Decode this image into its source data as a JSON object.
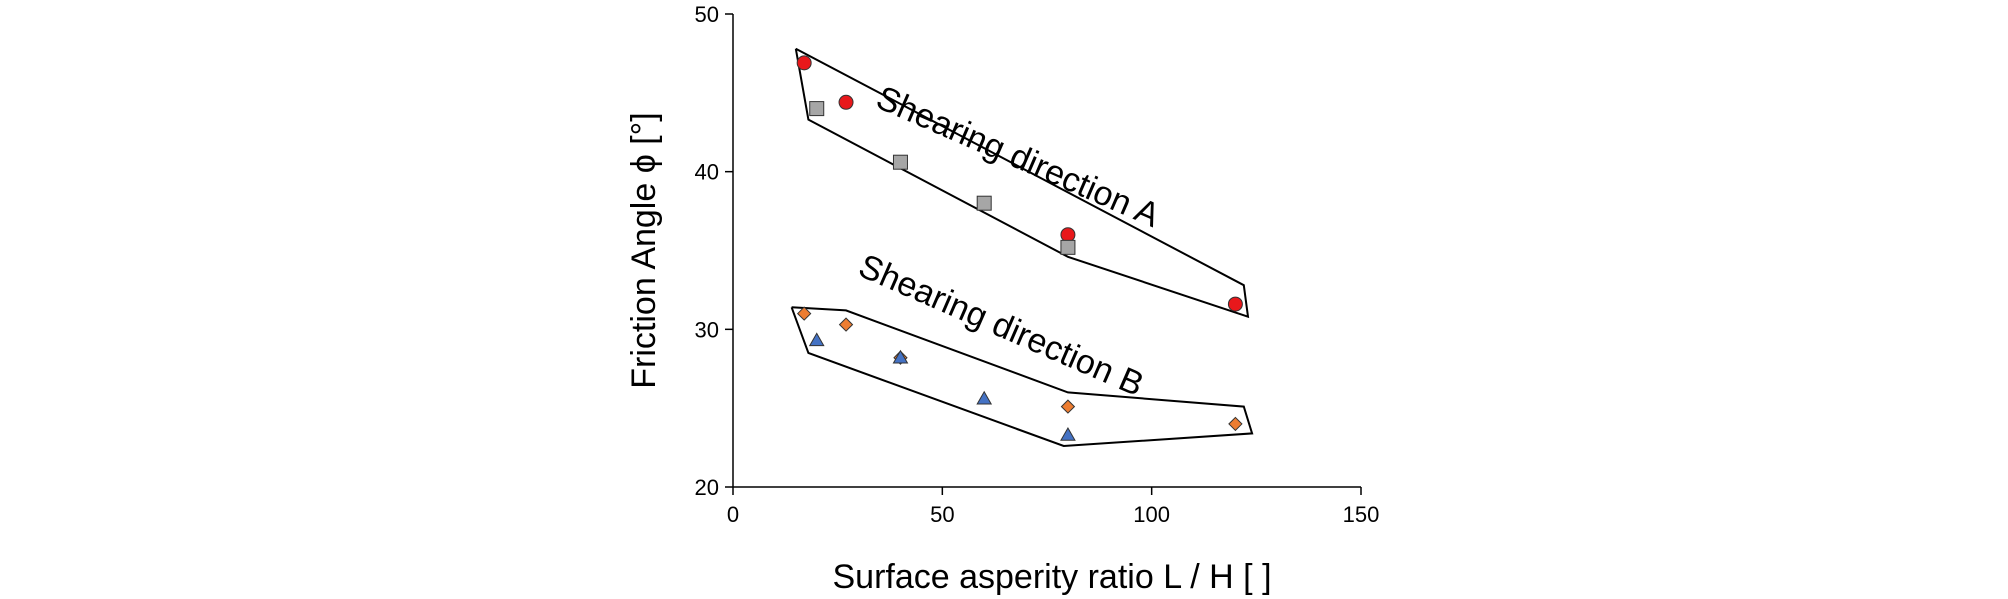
{
  "chart_data": {
    "type": "scatter",
    "xlabel": "Surface asperity ratio L / H [ ]",
    "ylabel": "Friction Angle ϕ [°]",
    "xlim": [
      0,
      150
    ],
    "ylim": [
      20,
      50
    ],
    "x_ticks": [
      0,
      50,
      100,
      150
    ],
    "y_ticks": [
      20,
      30,
      40,
      50
    ],
    "grid": false,
    "legend": "none",
    "series": [
      {
        "marker": "circle",
        "color": "#e8181b",
        "points": [
          [
            17,
            46.9
          ],
          [
            27,
            44.4
          ],
          [
            80,
            36.0
          ],
          [
            120,
            31.6
          ]
        ]
      },
      {
        "marker": "square",
        "color": "#a6a6a6",
        "points": [
          [
            20,
            44.0
          ],
          [
            40,
            40.6
          ],
          [
            60,
            38.0
          ],
          [
            80,
            35.2
          ]
        ]
      },
      {
        "marker": "diamond",
        "color": "#ed7d31",
        "points": [
          [
            17,
            31.0
          ],
          [
            27,
            30.3
          ],
          [
            40,
            28.2
          ],
          [
            80,
            25.1
          ],
          [
            120,
            24.0
          ]
        ]
      },
      {
        "marker": "triangle",
        "color": "#4472c4",
        "points": [
          [
            20,
            29.3
          ],
          [
            40,
            28.2
          ],
          [
            60,
            25.6
          ],
          [
            80,
            23.3
          ]
        ]
      }
    ],
    "envelopes": [
      {
        "label": "Shearing direction A",
        "polygon": [
          [
            15,
            47.8
          ],
          [
            122,
            32.8
          ],
          [
            123,
            30.8
          ],
          [
            80,
            34.6
          ],
          [
            18,
            43.3
          ],
          [
            15,
            47.8
          ]
        ]
      },
      {
        "label": "Shearing direction B",
        "polygon": [
          [
            14,
            31.4
          ],
          [
            27,
            31.2
          ],
          [
            80,
            26.0
          ],
          [
            122,
            25.1
          ],
          [
            124,
            23.4
          ],
          [
            79,
            22.6
          ],
          [
            18,
            28.5
          ],
          [
            14,
            31.4
          ]
        ]
      }
    ],
    "annotations": [
      {
        "text": "Shearing direction A",
        "x": 67,
        "y": 40.3
      },
      {
        "text": "Shearing direction B",
        "x": 63,
        "y": 29.6
      }
    ]
  }
}
